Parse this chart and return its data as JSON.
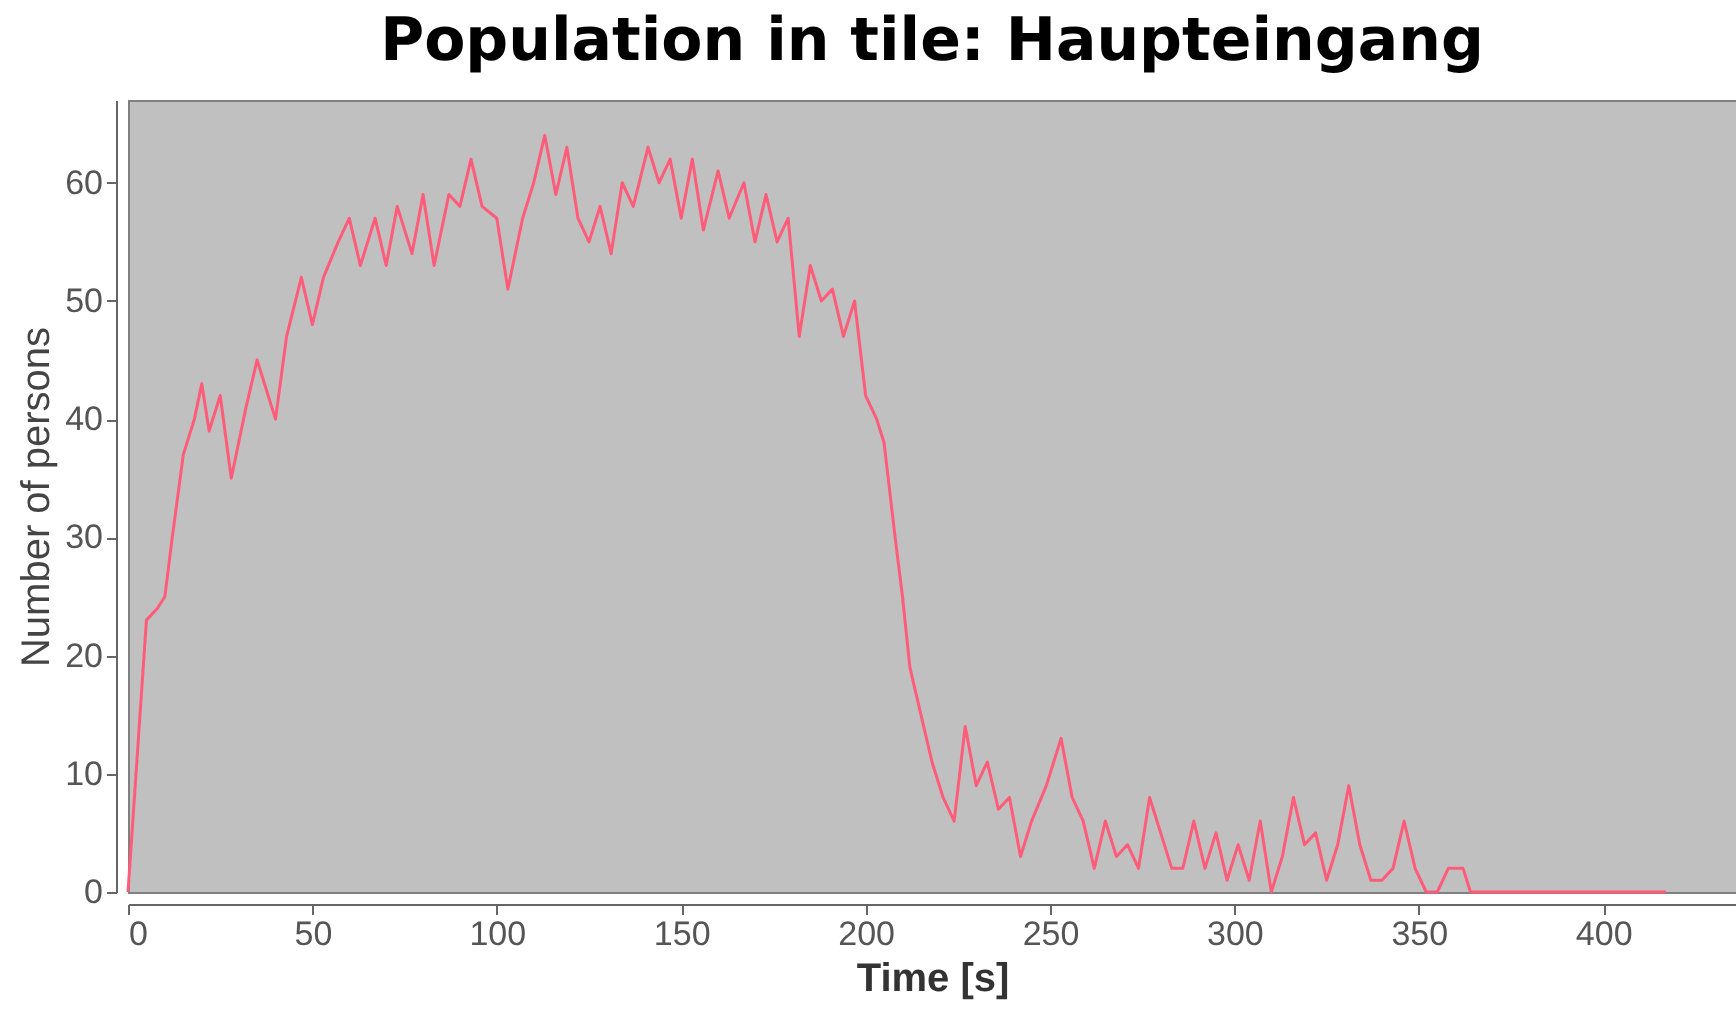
{
  "chart_data": {
    "type": "line",
    "title": "Population in tile: Haupteingang",
    "xlabel": "Time [s]",
    "ylabel": "Number of persons",
    "x": [
      0,
      5,
      8,
      10,
      12,
      15,
      18,
      20,
      22,
      25,
      28,
      32,
      35,
      40,
      43,
      47,
      50,
      53,
      57,
      60,
      63,
      67,
      70,
      73,
      77,
      80,
      83,
      87,
      90,
      93,
      96,
      100,
      103,
      107,
      110,
      113,
      116,
      119,
      122,
      125,
      128,
      131,
      134,
      137,
      141,
      144,
      147,
      150,
      153,
      156,
      160,
      163,
      167,
      170,
      173,
      176,
      179,
      182,
      185,
      188,
      191,
      194,
      197,
      200,
      203,
      205,
      208,
      210,
      212,
      215,
      218,
      221,
      224,
      227,
      230,
      233,
      236,
      239,
      242,
      245,
      249,
      253,
      256,
      259,
      262,
      265,
      268,
      271,
      274,
      277,
      280,
      283,
      286,
      289,
      292,
      295,
      298,
      301,
      304,
      307,
      310,
      313,
      316,
      319,
      322,
      325,
      328,
      331,
      334,
      337,
      340,
      343,
      346,
      349,
      352,
      355,
      358,
      362,
      364,
      417
    ],
    "series": [
      {
        "color": "#ff5c7a",
        "values": [
          0,
          23,
          24,
          25,
          30,
          37,
          40,
          43,
          39,
          42,
          35,
          41,
          45,
          40,
          47,
          52,
          48,
          52,
          55,
          57,
          53,
          57,
          53,
          58,
          54,
          59,
          53,
          59,
          58,
          62,
          58,
          57,
          51,
          57,
          60,
          64,
          59,
          63,
          57,
          55,
          58,
          54,
          60,
          58,
          63,
          60,
          62,
          57,
          62,
          56,
          61,
          57,
          60,
          55,
          59,
          55,
          57,
          47,
          53,
          50,
          51,
          47,
          50,
          42,
          40,
          38,
          30,
          25,
          19,
          15,
          11,
          8,
          6,
          14,
          9,
          11,
          7,
          8,
          3,
          6,
          9,
          13,
          8,
          6,
          2,
          6,
          3,
          4,
          2,
          8,
          5,
          2,
          2,
          6,
          2,
          5,
          1,
          4,
          1,
          6,
          0,
          3,
          8,
          4,
          5,
          1,
          4,
          9,
          4,
          1,
          1,
          2,
          6,
          2,
          0,
          0,
          2,
          2,
          0,
          0
        ]
      }
    ],
    "xlim": [
      0,
      436
    ],
    "ylim": [
      0,
      67
    ],
    "xticks": [
      0,
      50,
      100,
      150,
      200,
      250,
      300,
      350,
      400
    ],
    "yticks": [
      0,
      10,
      20,
      30,
      40,
      50,
      60
    ],
    "grid": false,
    "marker": "none",
    "line_style": "solid",
    "legend": false
  }
}
